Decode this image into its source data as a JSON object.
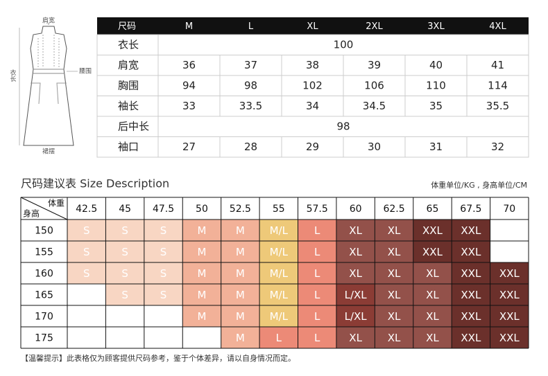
{
  "illustration": {
    "shoulder": "肩宽",
    "length": "衣长",
    "waist": "腰围",
    "hem": "裙摆"
  },
  "size_table": {
    "header": [
      "尺码",
      "M",
      "L",
      "XL",
      "2XL",
      "3XL",
      "4XL"
    ],
    "rows": [
      [
        "衣长",
        100
      ],
      [
        "肩宽",
        36,
        37,
        38,
        39,
        40,
        41
      ],
      [
        "胸围",
        94,
        98,
        102,
        106,
        110,
        114
      ],
      [
        "袖长",
        33,
        33.5,
        34,
        34.5,
        35,
        35.5
      ],
      [
        "后中长",
        98
      ],
      [
        "袖口",
        27,
        28,
        29,
        30,
        31,
        32
      ]
    ]
  },
  "recommendation": {
    "title": "尺码建议表  Size Description",
    "units": "体重单位/KG , 身高单位/CM",
    "corner_weight": "体重",
    "corner_height": "身高",
    "weights": [
      42.5,
      45,
      47.5,
      50,
      52.5,
      55,
      57.5,
      60,
      62.5,
      65,
      67.5,
      70
    ],
    "heights": [
      150,
      155,
      160,
      165,
      170,
      175
    ],
    "cells": [
      [
        "S",
        "S",
        "S",
        "M",
        "M",
        "M/L",
        "L",
        "XL",
        "XL",
        "XXL",
        "XXL",
        null
      ],
      [
        "S",
        "S",
        "S",
        "M",
        "M",
        "M/L",
        "L",
        "XL",
        "XL",
        "XXL",
        "XXL",
        null
      ],
      [
        "S",
        "S",
        "S",
        "M",
        "M",
        "M/L",
        "L",
        "XL",
        "XL",
        "XL",
        "XXL",
        "XXL"
      ],
      [
        null,
        "S",
        "S",
        "M",
        "M",
        "M/L",
        "L",
        "L/XL",
        "XL",
        "XL",
        "XXL",
        "XXL"
      ],
      [
        null,
        null,
        null,
        "M",
        "M",
        "M/L",
        "L",
        "L/XL",
        "XL",
        "XL",
        "XXL",
        "XXL"
      ],
      [
        null,
        null,
        null,
        null,
        "M",
        "L",
        "L",
        "XL",
        "XL",
        "XL",
        "XXL",
        "XXL"
      ]
    ],
    "colors": {
      "S": "#f8d6c3",
      "M": "#f2b198",
      "M/L": "#eec979",
      "L": "#ec8a77",
      "L/XL": "#8b3c35",
      "XL": "#93514a",
      "XXL": "#6b302b"
    }
  },
  "note": "【温馨提示】此表格仅为顾客提供尺码参考，鉴于个体差异，请以自身情况而定。"
}
